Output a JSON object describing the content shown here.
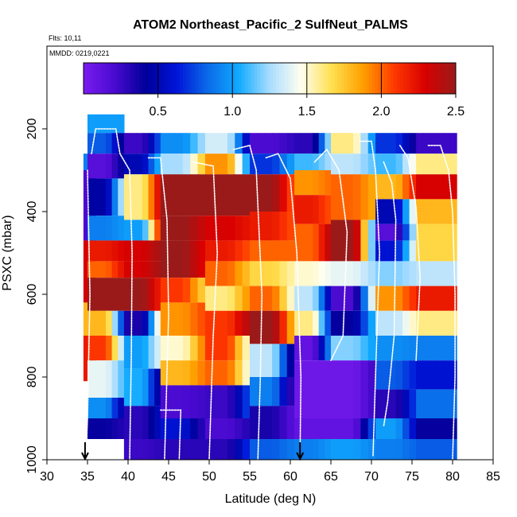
{
  "chart_data": {
    "type": "heatmap",
    "title": "ATOM2 Northeast_Pacific_2 SulfNeut_PALMS",
    "flights_label": "Flts: 10,11",
    "mmdd_label": "MMDD: 0219,0221",
    "xlabel": "Latitude (deg N)",
    "ylabel": "PSXC (mbar)",
    "xlim": [
      30,
      85
    ],
    "ylim": [
      1000,
      0
    ],
    "x_ticks": [
      30,
      35,
      40,
      45,
      50,
      55,
      60,
      65,
      70,
      75,
      80,
      85
    ],
    "y_ticks": [
      200,
      400,
      600,
      800,
      1000
    ],
    "colorbar": {
      "range": [
        0,
        2.5
      ],
      "ticks": [
        0.5,
        1.0,
        1.5,
        2.0,
        2.5
      ],
      "tick_labels": [
        "0.5",
        "1.0",
        "1.5",
        "2.0",
        "2.5"
      ],
      "colors": [
        "#7a1cf0",
        "#4a0ad0",
        "#00009a",
        "#0014d8",
        "#0a6ae8",
        "#10aaff",
        "#a8dcff",
        "#fffff0",
        "#ffe050",
        "#ffa000",
        "#ff3a00",
        "#d80000",
        "#9a1a1a"
      ]
    },
    "markers": {
      "arrows_at_latitude": [
        34.7,
        61.2
      ]
    },
    "columns": [
      {
        "x0": 34.5,
        "x1": 36.0,
        "cells": [
          [
            260,
            300,
            0.9
          ],
          [
            300,
            470,
            0.2
          ],
          [
            470,
            620,
            2.3
          ],
          [
            620,
            700,
            1.8
          ],
          [
            700,
            810,
            2.2
          ]
        ]
      },
      {
        "x0": 35.0,
        "x1": 39.5,
        "cells": [
          [
            165,
            210,
            1.0
          ],
          [
            210,
            260,
            0.8
          ],
          [
            260,
            320,
            0.15
          ],
          [
            320,
            410,
            0.45
          ],
          [
            410,
            470,
            0.9
          ],
          [
            470,
            520,
            2.2
          ],
          [
            520,
            560,
            2.0
          ],
          [
            560,
            640,
            2.5
          ],
          [
            640,
            700,
            1.8
          ],
          [
            700,
            760,
            2.1
          ],
          [
            760,
            850,
            1.4
          ],
          [
            850,
            900,
            0.95
          ],
          [
            900,
            950,
            0.4
          ]
        ]
      },
      {
        "x0": 39.5,
        "x1": 44.0,
        "cells": [
          [
            210,
            260,
            0.25
          ],
          [
            260,
            310,
            0.5
          ],
          [
            310,
            420,
            1.6
          ],
          [
            420,
            470,
            1.0
          ],
          [
            470,
            520,
            2.3
          ],
          [
            520,
            560,
            2.3
          ],
          [
            560,
            640,
            2.5
          ],
          [
            640,
            700,
            0.35
          ],
          [
            700,
            780,
            1.0
          ],
          [
            780,
            870,
            1.05
          ],
          [
            870,
            950,
            0.3
          ],
          [
            950,
            1000,
            0.25
          ]
        ]
      },
      {
        "x0": 44.0,
        "x1": 49.5,
        "cells": [
          [
            210,
            260,
            0.95
          ],
          [
            260,
            310,
            1.25
          ],
          [
            310,
            410,
            2.5
          ],
          [
            410,
            470,
            2.5
          ],
          [
            470,
            560,
            2.5
          ],
          [
            560,
            620,
            2.1
          ],
          [
            620,
            700,
            1.9
          ],
          [
            700,
            760,
            1.5
          ],
          [
            760,
            820,
            1.8
          ],
          [
            820,
            900,
            0.2
          ],
          [
            900,
            950,
            0.6
          ],
          [
            950,
            1000,
            0.3
          ]
        ]
      },
      {
        "x0": 49.5,
        "x1": 55.0,
        "cells": [
          [
            210,
            260,
            1.35
          ],
          [
            260,
            310,
            1.9
          ],
          [
            310,
            410,
            2.5
          ],
          [
            410,
            470,
            2.3
          ],
          [
            470,
            520,
            2.2
          ],
          [
            520,
            580,
            2.0
          ],
          [
            580,
            640,
            1.6
          ],
          [
            640,
            700,
            2.1
          ],
          [
            700,
            760,
            2.1
          ],
          [
            760,
            820,
            2.0
          ],
          [
            820,
            900,
            0.25
          ],
          [
            900,
            950,
            0.2
          ],
          [
            950,
            1000,
            0.3
          ]
        ]
      },
      {
        "x0": 55.0,
        "x1": 60.5,
        "cells": [
          [
            210,
            260,
            0.2
          ],
          [
            260,
            310,
            0.7
          ],
          [
            310,
            400,
            2.5
          ],
          [
            400,
            470,
            2.2
          ],
          [
            470,
            520,
            2.0
          ],
          [
            520,
            580,
            1.7
          ],
          [
            580,
            640,
            2.0
          ],
          [
            640,
            720,
            2.5
          ],
          [
            720,
            800,
            1.3
          ],
          [
            800,
            870,
            0.9
          ],
          [
            870,
            950,
            0.35
          ],
          [
            950,
            1000,
            0.8
          ]
        ]
      },
      {
        "x0": 60.5,
        "x1": 65.0,
        "cells": [
          [
            210,
            260,
            0.3
          ],
          [
            260,
            300,
            1.1
          ],
          [
            300,
            360,
            1.9
          ],
          [
            360,
            430,
            2.2
          ],
          [
            430,
            520,
            2.0
          ],
          [
            520,
            580,
            1.5
          ],
          [
            580,
            640,
            1.3
          ],
          [
            640,
            700,
            1.6
          ],
          [
            700,
            760,
            0.1
          ],
          [
            760,
            900,
            0.05
          ],
          [
            900,
            950,
            0.1
          ],
          [
            950,
            1000,
            0.9
          ]
        ]
      },
      {
        "x0": 65.0,
        "x1": 70.5,
        "cells": [
          [
            210,
            260,
            1.6
          ],
          [
            260,
            310,
            1.3
          ],
          [
            310,
            420,
            2.0
          ],
          [
            420,
            520,
            2.5
          ],
          [
            520,
            580,
            1.4
          ],
          [
            580,
            640,
            0.2
          ],
          [
            640,
            700,
            0.4
          ],
          [
            700,
            760,
            1.2
          ],
          [
            760,
            900,
            0.05
          ],
          [
            900,
            950,
            0.1
          ],
          [
            950,
            1000,
            1.0
          ]
        ]
      },
      {
        "x0": 70.5,
        "x1": 75.5,
        "cells": [
          [
            210,
            260,
            0.7
          ],
          [
            260,
            310,
            1.1
          ],
          [
            310,
            370,
            1.8
          ],
          [
            370,
            430,
            0.5
          ],
          [
            430,
            470,
            0.15
          ],
          [
            470,
            520,
            0.6
          ],
          [
            520,
            580,
            1.2
          ],
          [
            580,
            640,
            1.9
          ],
          [
            640,
            700,
            1.3
          ],
          [
            700,
            760,
            0.95
          ],
          [
            760,
            830,
            0.8
          ],
          [
            830,
            900,
            0.3
          ],
          [
            900,
            950,
            1.0
          ],
          [
            950,
            1000,
            0.9
          ]
        ]
      },
      {
        "x0": 75.5,
        "x1": 80.5,
        "cells": [
          [
            210,
            260,
            0.25
          ],
          [
            260,
            310,
            1.6
          ],
          [
            310,
            370,
            2.3
          ],
          [
            370,
            430,
            1.8
          ],
          [
            430,
            520,
            1.7
          ],
          [
            520,
            580,
            1.3
          ],
          [
            580,
            640,
            2.2
          ],
          [
            640,
            700,
            1.6
          ],
          [
            700,
            760,
            0.9
          ],
          [
            760,
            830,
            0.6
          ],
          [
            830,
            900,
            0.85
          ],
          [
            900,
            950,
            0.4
          ],
          [
            950,
            1000,
            0.8
          ]
        ]
      }
    ],
    "flight_tracks": [
      [
        [
          35.5,
          260
        ],
        [
          36.0,
          200
        ],
        [
          38.5,
          200
        ],
        [
          39.0,
          260
        ],
        [
          40.2,
          300
        ],
        [
          40.5,
          500
        ],
        [
          40.4,
          750
        ],
        [
          40.2,
          1000
        ]
      ],
      [
        [
          35.0,
          300
        ],
        [
          35.3,
          600
        ],
        [
          35.0,
          900
        ],
        [
          34.8,
          1000
        ]
      ],
      [
        [
          42.5,
          270
        ],
        [
          44.0,
          270
        ],
        [
          44.8,
          420
        ],
        [
          45.0,
          650
        ],
        [
          44.5,
          1000
        ]
      ],
      [
        [
          44.0,
          880
        ],
        [
          46.5,
          880
        ],
        [
          46.3,
          1000
        ]
      ],
      [
        [
          48.0,
          280
        ],
        [
          50.5,
          290
        ],
        [
          51.0,
          500
        ],
        [
          50.5,
          700
        ],
        [
          50.0,
          1000
        ]
      ],
      [
        [
          53.0,
          250
        ],
        [
          55.0,
          240
        ],
        [
          55.8,
          300
        ],
        [
          56.5,
          600
        ],
        [
          56.3,
          800
        ],
        [
          56.0,
          1000
        ]
      ],
      [
        [
          57.0,
          270
        ],
        [
          58.5,
          260
        ],
        [
          60.0,
          320
        ],
        [
          60.8,
          500
        ],
        [
          61.3,
          800
        ],
        [
          61.2,
          1000
        ]
      ],
      [
        [
          63.0,
          280
        ],
        [
          64.5,
          250
        ],
        [
          66.0,
          300
        ],
        [
          67.0,
          450
        ],
        [
          66.5,
          700
        ],
        [
          65.0,
          760
        ]
      ],
      [
        [
          68.5,
          230
        ],
        [
          70.0,
          230
        ],
        [
          70.5,
          300
        ],
        [
          71.0,
          500
        ],
        [
          70.5,
          800
        ],
        [
          70.2,
          990
        ]
      ],
      [
        [
          71.5,
          280
        ],
        [
          72.5,
          330
        ],
        [
          73.0,
          420
        ],
        [
          72.8,
          700
        ],
        [
          72.0,
          860
        ],
        [
          71.5,
          920
        ]
      ],
      [
        [
          73.5,
          240
        ],
        [
          74.5,
          270
        ],
        [
          75.5,
          390
        ],
        [
          76.0,
          560
        ],
        [
          75.5,
          760
        ]
      ],
      [
        [
          77.0,
          240
        ],
        [
          78.5,
          240
        ],
        [
          79.5,
          300
        ],
        [
          80.0,
          400
        ],
        [
          80.3,
          600
        ],
        [
          80.3,
          800
        ],
        [
          80.0,
          1000
        ]
      ]
    ]
  }
}
